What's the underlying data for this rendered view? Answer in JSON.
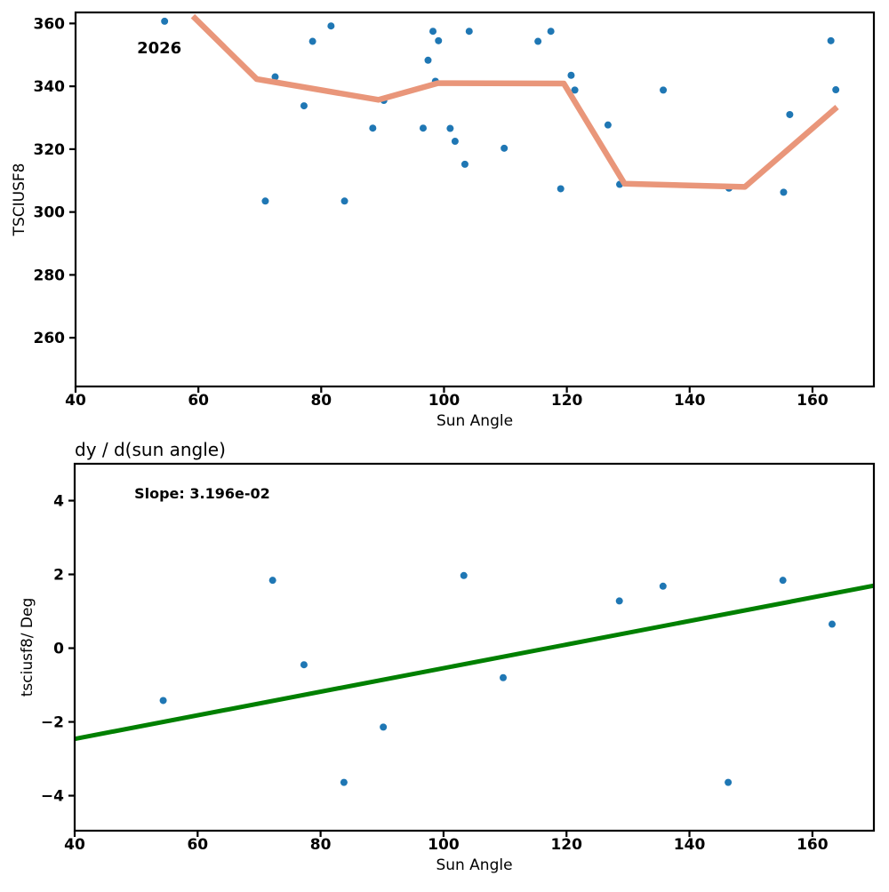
{
  "figure": {
    "background": "#ffffff"
  },
  "colors": {
    "scatter": "#1f77b4",
    "rolling_line": "#e9967a",
    "fit_line": "#008000",
    "axis": "#000000",
    "text": "#000000"
  },
  "chart_data": [
    {
      "type": "scatter",
      "title": "",
      "xlabel": "Sun Angle",
      "ylabel": "TSCIUSF8",
      "xlim": [
        40,
        170
      ],
      "ylim": [
        244.5,
        363.5
      ],
      "xticks": [
        40,
        60,
        80,
        100,
        120,
        140,
        160
      ],
      "yticks": [
        260,
        280,
        300,
        320,
        340,
        360
      ],
      "grid": false,
      "legend_position": "none",
      "annotations": [
        {
          "text": "2026",
          "x": 50,
          "y": 350.5,
          "bold": true,
          "size": 18
        }
      ],
      "series": [
        {
          "name": "tsciusf8-scatter",
          "kind": "scatter",
          "color": "#1f77b4",
          "marker_radius": 4,
          "points": [
            [
              54.5,
              360.7
            ],
            [
              70.9,
              303.5
            ],
            [
              72.5,
              343.0
            ],
            [
              77.2,
              333.8
            ],
            [
              78.6,
              354.3
            ],
            [
              81.6,
              359.2
            ],
            [
              83.8,
              303.5
            ],
            [
              88.4,
              326.7
            ],
            [
              90.2,
              335.5
            ],
            [
              96.6,
              326.7
            ],
            [
              97.4,
              348.3
            ],
            [
              98.2,
              357.5
            ],
            [
              98.6,
              341.6
            ],
            [
              99.1,
              354.5
            ],
            [
              101.0,
              326.6
            ],
            [
              101.8,
              322.5
            ],
            [
              103.4,
              315.2
            ],
            [
              104.1,
              357.5
            ],
            [
              109.8,
              320.3
            ],
            [
              115.3,
              354.3
            ],
            [
              117.4,
              357.5
            ],
            [
              119.0,
              307.4
            ],
            [
              120.7,
              343.5
            ],
            [
              121.3,
              338.8
            ],
            [
              126.7,
              327.7
            ],
            [
              128.6,
              308.8
            ],
            [
              135.7,
              338.8
            ],
            [
              146.4,
              307.6
            ],
            [
              155.3,
              306.3
            ],
            [
              156.3,
              331.0
            ],
            [
              163.0,
              354.5
            ],
            [
              163.8,
              338.9
            ]
          ]
        },
        {
          "name": "rolling-mean-line",
          "kind": "line",
          "color": "#e9967a",
          "width": 6.5,
          "points": [
            [
              59.1,
              362.3
            ],
            [
              69.5,
              342.3
            ],
            [
              89.3,
              335.7
            ],
            [
              99.0,
              341.0
            ],
            [
              119.5,
              340.9
            ],
            [
              129.4,
              309.0
            ],
            [
              149.0,
              308.0
            ],
            [
              164.0,
              333.4
            ]
          ]
        }
      ]
    },
    {
      "type": "scatter",
      "title": "dy / d(sun angle)",
      "xlabel": "Sun Angle",
      "ylabel": "tsciusf8/ Deg",
      "xlim": [
        40,
        170
      ],
      "ylim": [
        -4.95,
        5.0
      ],
      "xticks": [
        40,
        60,
        80,
        100,
        120,
        140,
        160
      ],
      "yticks": [
        -4,
        -2,
        0,
        2,
        4
      ],
      "grid": false,
      "legend_position": "none",
      "annotations": [
        {
          "text": "Slope: 3.196e-02",
          "x": 49.7,
          "y": 4.06,
          "bold": true,
          "size": 16
        }
      ],
      "series": [
        {
          "name": "derivative-scatter",
          "kind": "scatter",
          "color": "#1f77b4",
          "marker_radius": 4,
          "points": [
            [
              54.4,
              -1.42
            ],
            [
              72.2,
              1.84
            ],
            [
              77.3,
              -0.45
            ],
            [
              83.8,
              -3.64
            ],
            [
              90.2,
              -2.14
            ],
            [
              103.3,
              1.97
            ],
            [
              109.7,
              -0.8
            ],
            [
              128.6,
              1.28
            ],
            [
              135.7,
              1.68
            ],
            [
              146.3,
              -3.64
            ],
            [
              155.2,
              1.84
            ],
            [
              163.2,
              0.65
            ]
          ]
        },
        {
          "name": "regression-line",
          "kind": "line",
          "color": "#008000",
          "width": 5,
          "points": [
            [
              40,
              -2.46
            ],
            [
              170,
              1.695
            ]
          ]
        }
      ]
    }
  ]
}
